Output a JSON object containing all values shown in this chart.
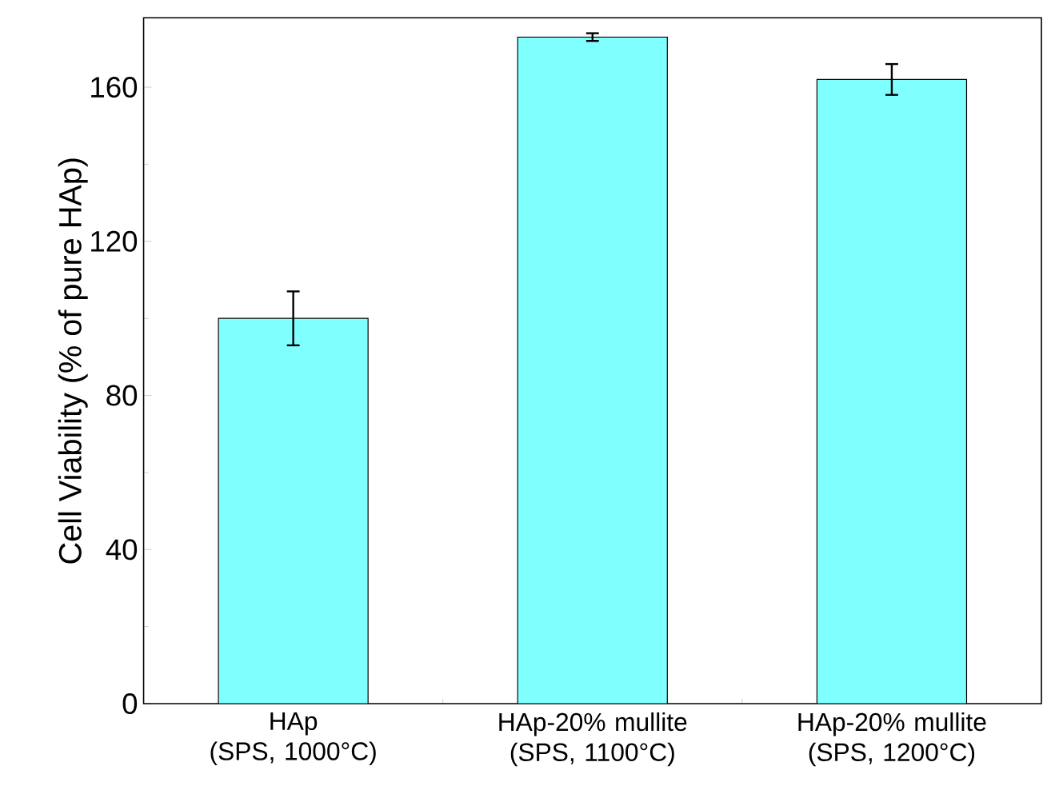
{
  "chart_data": {
    "type": "bar",
    "ylabel": "Cell Viability (% of pure HAp)",
    "categories": [
      "HAp (SPS, 1000°C)",
      "HAp-20% mullite (SPS, 1100°C)",
      "HAp-20% mullite (SPS, 1200°C)"
    ],
    "values": [
      100,
      173,
      162
    ],
    "errors": [
      7,
      1,
      4
    ],
    "color": "#80ffff",
    "ylim": [
      0,
      178
    ],
    "yticks": [
      0,
      40,
      80,
      120,
      160
    ]
  }
}
